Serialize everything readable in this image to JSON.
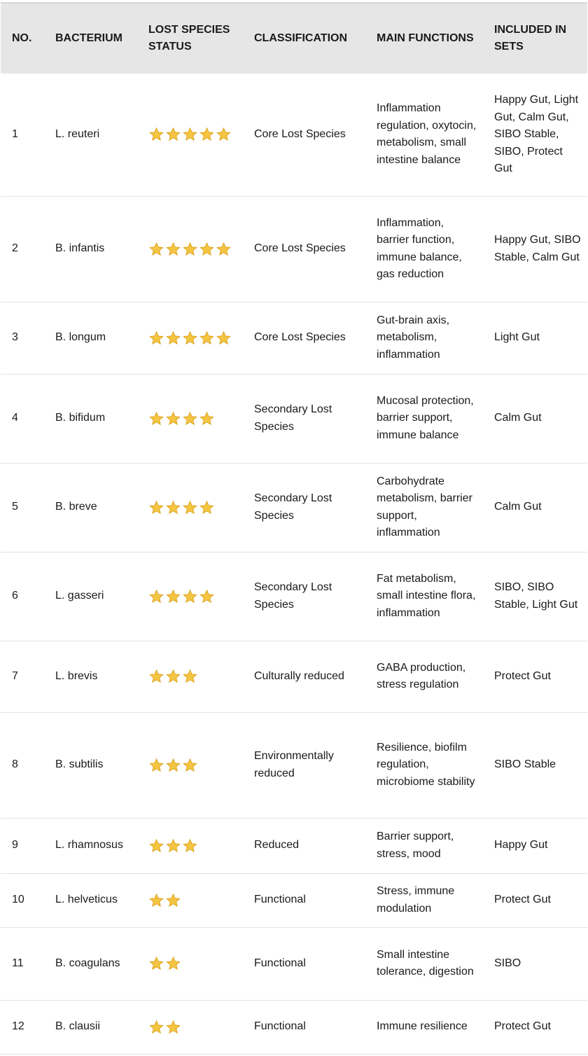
{
  "headers": [
    "NO.",
    "BACTERIUM",
    "LOST SPECIES STATUS",
    "CLASSIFICATION",
    "MAIN FUNCTIONS",
    "INCLUDED IN SETS"
  ],
  "star_color": "#f5c542",
  "rows": [
    {
      "no": "1",
      "bacterium": "L. reuteri",
      "stars": 5,
      "classification": "Core Lost Species",
      "functions": "Inflammation regulation, oxytocin, metabolism, small intestine balance",
      "sets": "Happy Gut, Light Gut, Calm Gut, SIBO Stable, SIBO, Protect Gut"
    },
    {
      "no": "2",
      "bacterium": "B. infantis",
      "stars": 5,
      "classification": "Core Lost Species",
      "functions": "Inflammation, barrier function, immune balance, gas reduction",
      "sets": "Happy Gut, SIBO Stable, Calm Gut"
    },
    {
      "no": "3",
      "bacterium": "B. longum",
      "stars": 5,
      "classification": "Core Lost Species",
      "functions": "Gut-brain axis, metabolism, inflammation",
      "sets": "Light Gut"
    },
    {
      "no": "4",
      "bacterium": "B. bifidum",
      "stars": 4,
      "classification": "Secondary Lost Species",
      "functions": "Mucosal protection, barrier support, immune balance",
      "sets": "Calm Gut"
    },
    {
      "no": "5",
      "bacterium": "B. breve",
      "stars": 4,
      "classification": "Secondary Lost Species",
      "functions": "Carbohydrate metabolism, barrier support, inflammation",
      "sets": "Calm Gut"
    },
    {
      "no": "6",
      "bacterium": "L. gasseri",
      "stars": 4,
      "classification": "Secondary Lost Species",
      "functions": "Fat metabolism, small intestine flora, inflammation",
      "sets": "SIBO, SIBO Stable, Light Gut"
    },
    {
      "no": "7",
      "bacterium": "L. brevis",
      "stars": 3,
      "classification": "Culturally reduced",
      "functions": "GABA production, stress regulation",
      "sets": "Protect Gut"
    },
    {
      "no": "8",
      "bacterium": "B. subtilis",
      "stars": 3,
      "classification": "Environmentally reduced",
      "functions": "Resilience, biofilm regulation, microbiome stability",
      "sets": "SIBO Stable"
    },
    {
      "no": "9",
      "bacterium": "L. rhamnosus",
      "stars": 3,
      "classification": "Reduced",
      "functions": "Barrier support, stress, mood",
      "sets": "Happy Gut"
    },
    {
      "no": "10",
      "bacterium": "L. helveticus",
      "stars": 2,
      "classification": "Functional",
      "functions": "Stress, immune modulation",
      "sets": "Protect Gut"
    },
    {
      "no": "11",
      "bacterium": "B. coagulans",
      "stars": 2,
      "classification": "Functional",
      "functions": "Small intestine tolerance, digestion",
      "sets": "SIBO"
    },
    {
      "no": "12",
      "bacterium": "B. clausii",
      "stars": 2,
      "classification": "Functional",
      "functions": "Immune resilience",
      "sets": "Protect Gut"
    }
  ]
}
